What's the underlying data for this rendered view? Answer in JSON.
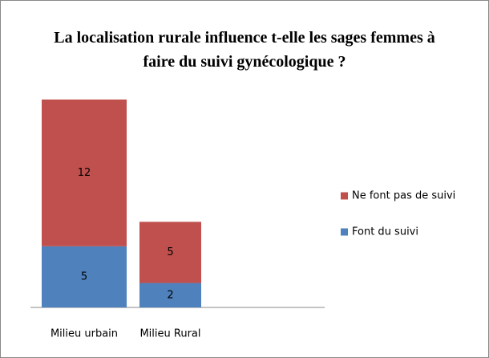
{
  "chart_data": {
    "type": "stacked_bar",
    "title": "La localisation rurale influence t-elle les sages femmes à faire du suivi gynécologique ?",
    "categories": [
      "Milieu urbain",
      "Milieu Rural"
    ],
    "series": [
      {
        "name": "Font du suivi",
        "color": "#4f81bd",
        "values": [
          5,
          2
        ]
      },
      {
        "name": "Ne font pas de suivi",
        "color": "#c0504d",
        "values": [
          12,
          5
        ]
      }
    ],
    "legend": "right"
  }
}
